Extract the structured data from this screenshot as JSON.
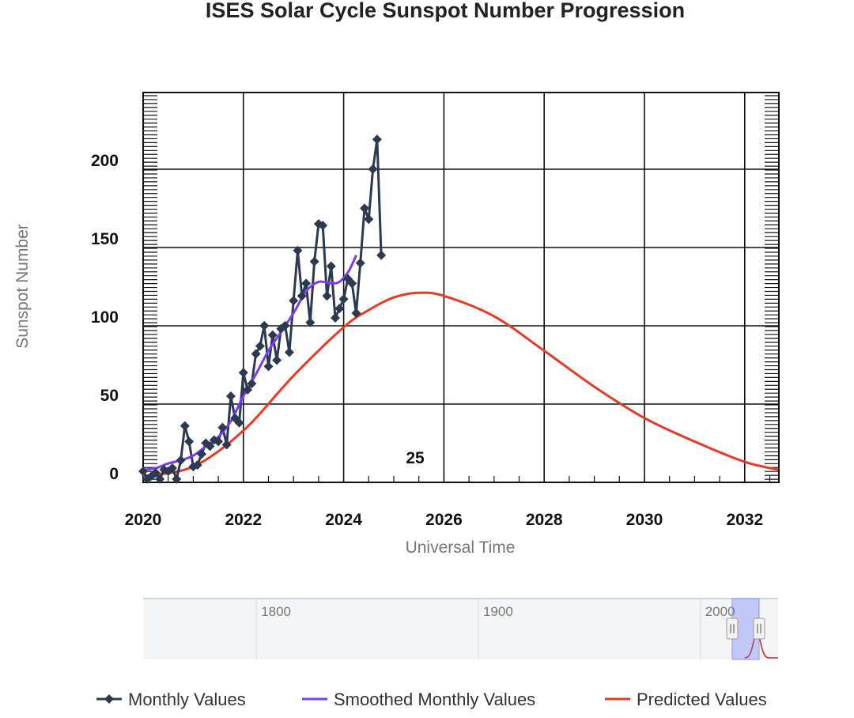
{
  "chart_data": {
    "type": "line",
    "title": "ISES Solar Cycle Sunspot Number Progression",
    "xlabel": "Universal Time",
    "ylabel": "Sunspot Number",
    "xlim": [
      2020.0,
      2032.67
    ],
    "ylim": [
      -6,
      250
    ],
    "x_ticks": [
      2020,
      2022,
      2024,
      2026,
      2028,
      2030,
      2032
    ],
    "y_ticks": [
      0,
      50,
      100,
      150,
      200
    ],
    "grid": true,
    "legend_position": "bottom",
    "annotation": "25",
    "series": [
      {
        "name": "Monthly Values",
        "color": "#2b3a4e",
        "marker": "diamond",
        "points": [
          [
            2020.0,
            1
          ],
          [
            2020.083,
            -4
          ],
          [
            2020.167,
            -2
          ],
          [
            2020.25,
            0
          ],
          [
            2020.333,
            -4
          ],
          [
            2020.417,
            2
          ],
          [
            2020.5,
            1
          ],
          [
            2020.583,
            3
          ],
          [
            2020.667,
            -4
          ],
          [
            2020.75,
            8
          ],
          [
            2020.833,
            30
          ],
          [
            2020.917,
            20
          ],
          [
            2021.0,
            4
          ],
          [
            2021.083,
            5
          ],
          [
            2021.167,
            12
          ],
          [
            2021.25,
            19
          ],
          [
            2021.333,
            17
          ],
          [
            2021.417,
            21
          ],
          [
            2021.5,
            20
          ],
          [
            2021.583,
            29
          ],
          [
            2021.667,
            18
          ],
          [
            2021.75,
            49
          ],
          [
            2021.833,
            35
          ],
          [
            2021.917,
            32
          ],
          [
            2022.0,
            64
          ],
          [
            2022.083,
            53
          ],
          [
            2022.167,
            57
          ],
          [
            2022.25,
            76
          ],
          [
            2022.333,
            81
          ],
          [
            2022.417,
            94
          ],
          [
            2022.5,
            68
          ],
          [
            2022.583,
            88
          ],
          [
            2022.667,
            72
          ],
          [
            2022.75,
            92
          ],
          [
            2022.833,
            94
          ],
          [
            2022.917,
            77
          ],
          [
            2023.0,
            110
          ],
          [
            2023.083,
            142
          ],
          [
            2023.167,
            113
          ],
          [
            2023.25,
            121
          ],
          [
            2023.333,
            96
          ],
          [
            2023.417,
            135
          ],
          [
            2023.5,
            159
          ],
          [
            2023.583,
            158
          ],
          [
            2023.667,
            113
          ],
          [
            2023.75,
            132
          ],
          [
            2023.833,
            99
          ],
          [
            2023.917,
            105
          ],
          [
            2024.0,
            111
          ],
          [
            2024.083,
            124
          ],
          [
            2024.167,
            121
          ],
          [
            2024.25,
            102
          ],
          [
            2024.333,
            134
          ],
          [
            2024.417,
            169
          ],
          [
            2024.5,
            162
          ],
          [
            2024.583,
            194
          ],
          [
            2024.667,
            213
          ],
          [
            2024.75,
            139
          ]
        ]
      },
      {
        "name": "Smoothed Monthly Values",
        "color": "#7a3cf0",
        "points": [
          [
            2020.0,
            1.8
          ],
          [
            2020.25,
            3
          ],
          [
            2020.5,
            6
          ],
          [
            2020.75,
            8
          ],
          [
            2021.0,
            11
          ],
          [
            2021.25,
            17
          ],
          [
            2021.5,
            23
          ],
          [
            2021.75,
            33
          ],
          [
            2022.0,
            49
          ],
          [
            2022.25,
            63
          ],
          [
            2022.5,
            78
          ],
          [
            2022.75,
            90
          ],
          [
            2023.0,
            102
          ],
          [
            2023.25,
            116
          ],
          [
            2023.5,
            122
          ],
          [
            2023.75,
            121
          ],
          [
            2023.917,
            122
          ],
          [
            2024.083,
            128
          ],
          [
            2024.167,
            133
          ],
          [
            2024.25,
            139
          ]
        ]
      },
      {
        "name": "Predicted Values",
        "color": "#e53a28",
        "peak_x": 2025.5,
        "peak_value": 115,
        "points": [
          [
            2020.0,
            -2
          ],
          [
            2021.0,
            4
          ],
          [
            2022.0,
            27
          ],
          [
            2023.0,
            62
          ],
          [
            2024.0,
            93
          ],
          [
            2024.5,
            104
          ],
          [
            2025.0,
            112
          ],
          [
            2025.5,
            115
          ],
          [
            2026.0,
            113
          ],
          [
            2027.0,
            100
          ],
          [
            2028.0,
            78
          ],
          [
            2029.0,
            55
          ],
          [
            2030.0,
            35
          ],
          [
            2031.0,
            20
          ],
          [
            2032.0,
            7
          ],
          [
            2032.67,
            2
          ]
        ]
      }
    ],
    "navigator": {
      "labels": [
        "1800",
        "1900",
        "2000"
      ],
      "range_start": 1749,
      "range_end": 2035,
      "selected": [
        2020,
        2032.67
      ]
    }
  }
}
